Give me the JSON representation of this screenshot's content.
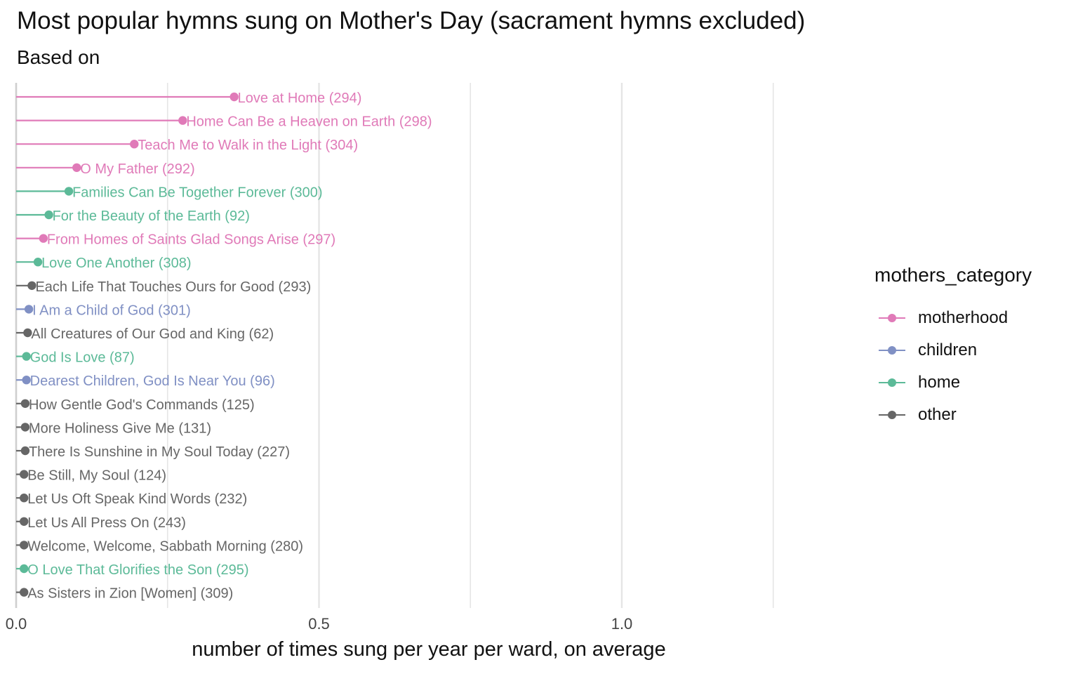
{
  "chart_data": {
    "type": "lollipop",
    "title": "Most popular hymns sung on Mother's Day (sacrament hymns excluded)",
    "subtitle": "Based on",
    "xlabel": "number of times sung per year per ward, on average",
    "ylabel": "",
    "xlim": [
      0,
      1.25
    ],
    "x_ticks": [
      0.0,
      0.5,
      1.0
    ],
    "x_tick_labels": [
      "0.0",
      "0.5",
      "1.0"
    ],
    "grid": true,
    "legend": {
      "title": "mothers_category",
      "position": "right",
      "items": [
        {
          "key": "motherhood",
          "label": "motherhood"
        },
        {
          "key": "children",
          "label": "children"
        },
        {
          "key": "home",
          "label": "home"
        },
        {
          "key": "other",
          "label": "other"
        }
      ]
    },
    "colors": {
      "motherhood": "#e07ab8",
      "children": "#8090c4",
      "home": "#5cba98",
      "other": "#666666"
    },
    "points": [
      {
        "label": "Love at Home (294)",
        "value": 0.36,
        "category": "motherhood"
      },
      {
        "label": "Home Can Be a Heaven on Earth (298)",
        "value": 0.275,
        "category": "motherhood"
      },
      {
        "label": "Teach Me to Walk in the Light (304)",
        "value": 0.195,
        "category": "motherhood"
      },
      {
        "label": "O My Father (292)",
        "value": 0.1,
        "category": "motherhood"
      },
      {
        "label": "Families Can Be Together Forever (300)",
        "value": 0.087,
        "category": "home"
      },
      {
        "label": "For the Beauty of the Earth (92)",
        "value": 0.054,
        "category": "home"
      },
      {
        "label": "From Homes of Saints Glad Songs Arise (297)",
        "value": 0.045,
        "category": "motherhood"
      },
      {
        "label": "Love One Another (308)",
        "value": 0.036,
        "category": "home"
      },
      {
        "label": "Each Life That Touches Ours for Good (293)",
        "value": 0.026,
        "category": "other"
      },
      {
        "label": "I Am a Child of God (301)",
        "value": 0.021,
        "category": "children"
      },
      {
        "label": "All Creatures of Our God and King (62)",
        "value": 0.019,
        "category": "other"
      },
      {
        "label": "God Is Love (87)",
        "value": 0.017,
        "category": "home"
      },
      {
        "label": "Dearest Children, God Is Near You (96)",
        "value": 0.017,
        "category": "children"
      },
      {
        "label": "How Gentle God's Commands (125)",
        "value": 0.015,
        "category": "other"
      },
      {
        "label": "More Holiness Give Me (131)",
        "value": 0.015,
        "category": "other"
      },
      {
        "label": "There Is Sunshine in My Soul Today (227)",
        "value": 0.015,
        "category": "other"
      },
      {
        "label": "Be Still, My Soul (124)",
        "value": 0.013,
        "category": "other"
      },
      {
        "label": "Let Us Oft Speak Kind Words (232)",
        "value": 0.013,
        "category": "other"
      },
      {
        "label": "Let Us All Press On (243)",
        "value": 0.013,
        "category": "other"
      },
      {
        "label": "Welcome, Welcome, Sabbath Morning (280)",
        "value": 0.013,
        "category": "other"
      },
      {
        "label": "O Love That Glorifies the Son (295)",
        "value": 0.013,
        "category": "home"
      },
      {
        "label": "As Sisters in Zion [Women] (309)",
        "value": 0.013,
        "category": "other"
      }
    ]
  }
}
